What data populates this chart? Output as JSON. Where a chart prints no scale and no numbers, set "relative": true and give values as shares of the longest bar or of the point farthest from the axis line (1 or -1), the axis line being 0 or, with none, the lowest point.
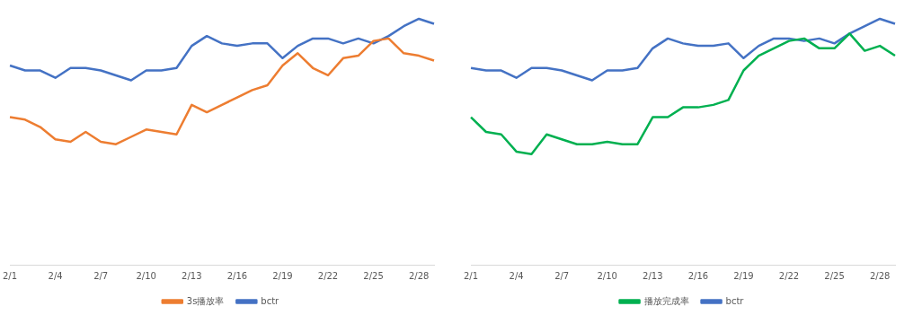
{
  "chart_data": [
    {
      "type": "line",
      "relative": true,
      "grid": false,
      "legend": "bottom",
      "marker": "none",
      "categories": [
        "2/1",
        null,
        null,
        "2/4",
        null,
        null,
        "2/7",
        null,
        null,
        "2/10",
        null,
        null,
        "2/13",
        null,
        null,
        "2/16",
        null,
        null,
        "2/19",
        null,
        null,
        "2/22",
        null,
        null,
        "2/25",
        null,
        null,
        "2/28",
        null
      ],
      "series": [
        {
          "name": "3s播放率",
          "color": "#ed7d31",
          "values": [
            0.6,
            0.59,
            0.56,
            0.51,
            0.5,
            0.54,
            0.5,
            0.49,
            0.52,
            0.55,
            0.54,
            0.53,
            0.65,
            0.62,
            0.65,
            0.68,
            0.71,
            0.73,
            0.81,
            0.86,
            0.8,
            0.77,
            0.84,
            0.85,
            0.91,
            0.92,
            0.86,
            0.85,
            0.83
          ]
        },
        {
          "name": "bctr",
          "color": "#4472c4",
          "values": [
            0.81,
            0.79,
            0.79,
            0.76,
            0.8,
            0.8,
            0.79,
            0.77,
            0.75,
            0.79,
            0.79,
            0.8,
            0.89,
            0.93,
            0.9,
            0.89,
            0.9,
            0.9,
            0.84,
            0.89,
            0.92,
            0.92,
            0.9,
            0.92,
            0.9,
            0.93,
            0.97,
            1,
            0.98
          ]
        }
      ]
    },
    {
      "type": "line",
      "relative": true,
      "grid": false,
      "legend": "bottom",
      "marker": "none",
      "categories": [
        "2/1",
        null,
        null,
        "2/4",
        null,
        null,
        "2/7",
        null,
        null,
        "2/10",
        null,
        null,
        "2/13",
        null,
        null,
        "2/16",
        null,
        null,
        "2/19",
        null,
        null,
        "2/22",
        null,
        null,
        "2/25",
        null,
        null,
        "2/28",
        null
      ],
      "series": [
        {
          "name": "播放完成率",
          "color": "#00b050",
          "values": [
            0.6,
            0.54,
            0.53,
            0.46,
            0.45,
            0.53,
            0.51,
            0.49,
            0.49,
            0.5,
            0.49,
            0.49,
            0.6,
            0.6,
            0.64,
            0.64,
            0.65,
            0.67,
            0.79,
            0.85,
            0.88,
            0.91,
            0.92,
            0.88,
            0.88,
            0.94,
            0.87,
            0.89,
            0.85
          ]
        },
        {
          "name": "bctr",
          "color": "#4472c4",
          "values": [
            0.8,
            0.79,
            0.79,
            0.76,
            0.8,
            0.8,
            0.79,
            0.77,
            0.75,
            0.79,
            0.79,
            0.8,
            0.88,
            0.92,
            0.9,
            0.89,
            0.89,
            0.9,
            0.84,
            0.89,
            0.92,
            0.92,
            0.91,
            0.92,
            0.9,
            0.94,
            0.97,
            1,
            0.98
          ]
        }
      ]
    }
  ]
}
